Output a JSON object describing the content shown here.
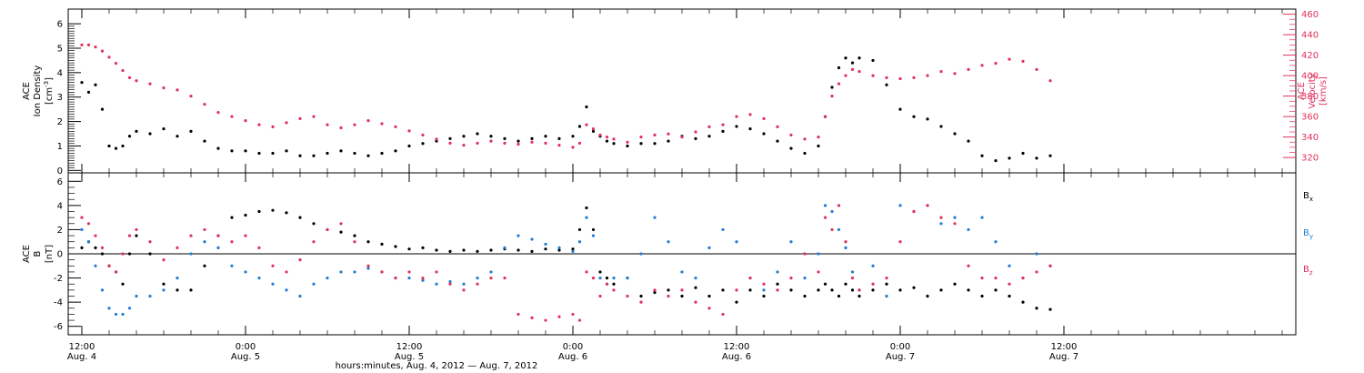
{
  "figure": {
    "colors": {
      "black": "#000000",
      "blue": "#1f7bd6",
      "red": "#e0305a"
    },
    "xaxis": {
      "title": "hours:minutes, Aug. 4, 2012 — Aug. 7, 2012",
      "range_hours": [
        -1,
        89
      ],
      "ticks": [
        {
          "h": 0,
          "time": "12:00",
          "date": "Aug. 4"
        },
        {
          "h": 12,
          "time": "0:00",
          "date": "Aug. 5"
        },
        {
          "h": 24,
          "time": "12:00",
          "date": "Aug. 5"
        },
        {
          "h": 36,
          "time": "0:00",
          "date": "Aug. 6"
        },
        {
          "h": 48,
          "time": "12:00",
          "date": "Aug. 6"
        },
        {
          "h": 60,
          "time": "0:00",
          "date": "Aug. 7"
        },
        {
          "h": 72,
          "time": "12:00",
          "date": "Aug. 7"
        }
      ]
    }
  },
  "chart_data": [
    {
      "type": "scatter",
      "panel": "top",
      "ylabel_lines": [
        "ACE",
        "Ion Density"
      ],
      "yunit_base": "[cm",
      "yunit_sup": "-3",
      "yunit_tail": "]",
      "ylim": [
        -0.1,
        6.6
      ],
      "yticks": [
        0,
        1,
        2,
        3,
        4,
        5,
        6
      ],
      "y2label_lines": [
        "ACE",
        "Velocity",
        "[km/s]"
      ],
      "y2lim": [
        305,
        465
      ],
      "y2ticks": [
        320,
        340,
        360,
        380,
        400,
        420,
        440,
        460
      ],
      "series": [
        {
          "color": "black",
          "axis": "left",
          "x": [
            0,
            0.5,
            1,
            1.5,
            2,
            2.5,
            3,
            3.5,
            4,
            5,
            6,
            7,
            8,
            9,
            10,
            11,
            12,
            13,
            14,
            15,
            16,
            17,
            18,
            19,
            20,
            21,
            22,
            23,
            24,
            25,
            26,
            27,
            28,
            29,
            30,
            31,
            32,
            33,
            34,
            35,
            36,
            36.5,
            37,
            37.5,
            38,
            38.5,
            39,
            40,
            41,
            42,
            43,
            44,
            45,
            46,
            47,
            48,
            49,
            50,
            51,
            52,
            53,
            54,
            54.5,
            55,
            55.5,
            56,
            56.5,
            57,
            58,
            59,
            60,
            61,
            62,
            63,
            64,
            65,
            66,
            67,
            68,
            69,
            70,
            71
          ],
          "y": [
            3.6,
            3.2,
            3.5,
            2.5,
            1.0,
            0.9,
            1.0,
            1.4,
            1.6,
            1.5,
            1.7,
            1.4,
            1.6,
            1.2,
            0.9,
            0.8,
            0.8,
            0.7,
            0.7,
            0.8,
            0.6,
            0.6,
            0.7,
            0.8,
            0.7,
            0.6,
            0.7,
            0.8,
            1.0,
            1.1,
            1.2,
            1.3,
            1.4,
            1.5,
            1.4,
            1.3,
            1.2,
            1.3,
            1.4,
            1.3,
            1.4,
            1.8,
            2.6,
            1.6,
            1.4,
            1.2,
            1.1,
            1.0,
            1.1,
            1.1,
            1.2,
            1.4,
            1.3,
            1.4,
            1.6,
            1.8,
            1.7,
            1.5,
            1.2,
            0.9,
            0.7,
            1.0,
            2.2,
            3.4,
            4.2,
            4.6,
            4.4,
            4.6,
            4.5,
            3.5,
            2.5,
            2.2,
            2.1,
            1.8,
            1.5,
            1.2,
            0.6,
            0.4,
            0.5,
            0.7,
            0.5,
            0.6
          ]
        },
        {
          "color": "red",
          "axis": "right",
          "x": [
            0,
            0.5,
            1,
            1.5,
            2,
            2.5,
            3,
            3.5,
            4,
            5,
            6,
            7,
            8,
            9,
            10,
            11,
            12,
            13,
            14,
            15,
            16,
            17,
            18,
            19,
            20,
            21,
            22,
            23,
            24,
            25,
            26,
            27,
            28,
            29,
            30,
            31,
            32,
            33,
            34,
            35,
            36,
            36.5,
            37,
            37.5,
            38,
            38.5,
            39,
            40,
            41,
            42,
            43,
            44,
            45,
            46,
            47,
            48,
            49,
            50,
            51,
            52,
            53,
            54,
            54.5,
            55,
            55.5,
            56,
            56.5,
            57,
            58,
            59,
            60,
            61,
            62,
            63,
            64,
            65,
            66,
            67,
            68,
            69,
            70,
            71
          ],
          "y": [
            430,
            430,
            428,
            424,
            418,
            412,
            405,
            398,
            395,
            392,
            388,
            386,
            380,
            372,
            364,
            360,
            356,
            352,
            350,
            354,
            358,
            360,
            352,
            349,
            352,
            356,
            353,
            350,
            346,
            342,
            338,
            334,
            332,
            334,
            336,
            334,
            333,
            335,
            334,
            332,
            330,
            334,
            352,
            348,
            342,
            340,
            338,
            335,
            340,
            342,
            343,
            340,
            345,
            350,
            352,
            360,
            362,
            358,
            350,
            342,
            338,
            340,
            360,
            380,
            392,
            400,
            406,
            404,
            400,
            398,
            397,
            398,
            400,
            404,
            402,
            406,
            410,
            412,
            416,
            414,
            406,
            395
          ]
        }
      ]
    },
    {
      "type": "scatter",
      "panel": "bottom",
      "ylabel_lines": [
        "ACE",
        "B"
      ],
      "yunit": "[nT]",
      "ylim": [
        -6.7,
        6.7
      ],
      "yticks": [
        -6,
        -4,
        -2,
        0,
        2,
        4,
        6
      ],
      "legend": [
        {
          "label": "B",
          "sub": "x",
          "color": "black"
        },
        {
          "label": "B",
          "sub": "y",
          "color": "blue"
        },
        {
          "label": "B",
          "sub": "z",
          "color": "red"
        }
      ],
      "series": [
        {
          "name": "Bx",
          "color": "black",
          "x": [
            0,
            0.5,
            1,
            1.5,
            2,
            2.5,
            3,
            3.5,
            4,
            5,
            6,
            7,
            8,
            9,
            10,
            11,
            12,
            13,
            14,
            15,
            16,
            17,
            18,
            19,
            20,
            21,
            22,
            23,
            24,
            25,
            26,
            27,
            28,
            29,
            30,
            31,
            32,
            33,
            34,
            35,
            36,
            36.5,
            37,
            37.5,
            38,
            38.5,
            39,
            40,
            41,
            42,
            43,
            44,
            45,
            46,
            47,
            48,
            49,
            50,
            51,
            52,
            53,
            54,
            54.5,
            55,
            55.5,
            56,
            56.5,
            57,
            58,
            59,
            60,
            61,
            62,
            63,
            64,
            65,
            66,
            67,
            68,
            69,
            70,
            71
          ],
          "y": [
            0.5,
            1.0,
            0.5,
            0.0,
            -1.0,
            -1.5,
            -2.5,
            0.0,
            1.5,
            0.0,
            -2.5,
            -3.0,
            -3.0,
            -1.0,
            1.5,
            3.0,
            3.2,
            3.5,
            3.6,
            3.4,
            3.0,
            2.5,
            2.0,
            1.8,
            1.5,
            1.0,
            0.8,
            0.6,
            0.4,
            0.5,
            0.3,
            0.2,
            0.3,
            0.2,
            0.3,
            0.4,
            0.3,
            0.2,
            0.4,
            0.3,
            0.4,
            2.0,
            3.8,
            2.0,
            -1.5,
            -2.0,
            -2.5,
            -2.0,
            -3.5,
            -3.2,
            -3.0,
            -3.5,
            -2.8,
            -3.5,
            -3.0,
            -4.0,
            -3.0,
            -3.5,
            -2.5,
            -3.0,
            -3.5,
            -3.0,
            -2.5,
            -3.0,
            -3.5,
            -2.5,
            -3.0,
            -3.5,
            -3.0,
            -2.5,
            -3.0,
            -2.8,
            -3.5,
            -3.0,
            -2.5,
            -3.0,
            -3.5,
            -3.0,
            -3.5,
            -4.0,
            -4.5,
            -4.6
          ]
        },
        {
          "name": "By",
          "color": "blue",
          "x": [
            0,
            0.5,
            1,
            1.5,
            2,
            2.5,
            3,
            3.5,
            4,
            5,
            6,
            7,
            8,
            9,
            10,
            11,
            12,
            13,
            14,
            15,
            16,
            17,
            18,
            19,
            20,
            21,
            22,
            23,
            24,
            25,
            26,
            27,
            28,
            29,
            30,
            31,
            32,
            33,
            34,
            35,
            36,
            36.5,
            37,
            37.5,
            38,
            38.5,
            39,
            40,
            41,
            42,
            43,
            44,
            45,
            46,
            47,
            48,
            49,
            50,
            51,
            52,
            53,
            54,
            54.5,
            55,
            55.5,
            56,
            56.5,
            57,
            58,
            59,
            60,
            61,
            62,
            63,
            64,
            65,
            66,
            67,
            68,
            69,
            70,
            71
          ],
          "y": [
            2.0,
            1.0,
            -1.0,
            -3.0,
            -4.5,
            -5.0,
            -5.0,
            -4.5,
            -3.5,
            -3.5,
            -3.0,
            -2.0,
            0.0,
            1.0,
            0.5,
            -1.0,
            -1.5,
            -2.0,
            -2.5,
            -3.0,
            -3.5,
            -2.5,
            -2.0,
            -1.5,
            -1.5,
            -1.2,
            -1.5,
            -2.0,
            -2.0,
            -2.2,
            -2.5,
            -2.3,
            -2.5,
            -2.0,
            -1.5,
            0.5,
            1.5,
            1.2,
            0.8,
            0.5,
            0.2,
            1.0,
            3.0,
            1.5,
            -2.0,
            -2.5,
            -2.0,
            -2.0,
            0.0,
            3.0,
            1.0,
            -1.5,
            -2.0,
            0.5,
            2.0,
            1.0,
            -2.0,
            -3.0,
            -1.5,
            1.0,
            -2.0,
            0.0,
            4.0,
            3.5,
            2.0,
            0.5,
            -1.5,
            -3.0,
            -1.0,
            -3.5,
            4.0,
            3.5,
            4.0,
            2.5,
            3.0,
            2.0,
            3.0,
            1.0,
            -1.0,
            -2.0,
            0.0,
            -1.0
          ]
        },
        {
          "name": "Bz",
          "color": "red",
          "x": [
            0,
            0.5,
            1,
            1.5,
            2,
            2.5,
            3,
            3.5,
            4,
            5,
            6,
            7,
            8,
            9,
            10,
            11,
            12,
            13,
            14,
            15,
            16,
            17,
            18,
            19,
            20,
            21,
            22,
            23,
            24,
            25,
            26,
            27,
            28,
            29,
            30,
            31,
            32,
            33,
            34,
            35,
            36,
            36.5,
            37,
            37.5,
            38,
            38.5,
            39,
            40,
            41,
            42,
            43,
            44,
            45,
            46,
            47,
            48,
            49,
            50,
            51,
            52,
            53,
            54,
            54.5,
            55,
            55.5,
            56,
            56.5,
            57,
            58,
            59,
            60,
            61,
            62,
            63,
            64,
            65,
            66,
            67,
            68,
            69,
            70,
            71
          ],
          "y": [
            3.0,
            2.5,
            1.5,
            0.5,
            -1.0,
            -1.5,
            0.0,
            1.5,
            2.0,
            1.0,
            -0.5,
            0.5,
            1.5,
            2.0,
            1.5,
            1.0,
            1.5,
            0.5,
            -1.0,
            -1.5,
            -0.5,
            1.0,
            2.0,
            2.5,
            1.0,
            -1.0,
            -1.5,
            -2.0,
            -1.5,
            -2.0,
            -1.5,
            -2.5,
            -3.0,
            -2.5,
            -2.0,
            -2.0,
            -5.0,
            -5.3,
            -5.5,
            -5.2,
            -5.0,
            -5.5,
            -1.5,
            -2.0,
            -3.5,
            -2.5,
            -3.0,
            -3.5,
            -4.0,
            -3.0,
            -3.5,
            -3.0,
            -4.0,
            -4.5,
            -5.0,
            -3.0,
            -2.0,
            -2.5,
            -3.0,
            -2.0,
            0.0,
            -1.5,
            3.0,
            2.0,
            4.0,
            1.0,
            -2.0,
            -3.0,
            -2.5,
            -2.0,
            1.0,
            3.5,
            4.0,
            3.0,
            2.5,
            -1.0,
            -2.0,
            -2.0,
            -2.5,
            -2.0,
            -1.5,
            -1.0
          ]
        }
      ]
    }
  ]
}
